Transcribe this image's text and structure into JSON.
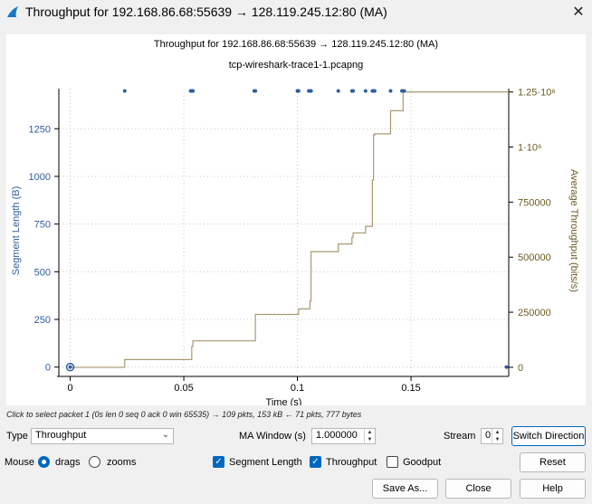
{
  "window": {
    "title": "Throughput for 192.168.86.68:55639 → 128.119.245.12:80 (MA)",
    "close_glyph": "✕"
  },
  "chart_data": {
    "type": "scatter",
    "title": "Throughput for 192.168.86.68:55639 → 128.119.245.12:80 (MA)",
    "subtitle": "tcp-wireshark-trace1-1.pcapng",
    "xlabel": "Time (s)",
    "ylabel_left": "Segment Length (B)",
    "ylabel_right": "Average Throughput (bits/s)",
    "xlim": [
      -0.005,
      0.193
    ],
    "ylim_left": [
      -30,
      1460
    ],
    "ylim_right": [
      -25000,
      1265000
    ],
    "x_ticks": [
      0,
      0.05,
      0.1,
      0.15
    ],
    "x_tick_labels": [
      "0",
      "0.05",
      "0.1",
      "0.15"
    ],
    "y_left_ticks": [
      0,
      250,
      500,
      750,
      1000,
      1250
    ],
    "y_left_tick_labels": [
      "0",
      "250",
      "500",
      "750",
      "1000",
      "1250"
    ],
    "y_right_ticks": [
      0,
      250000,
      500000,
      750000,
      1000000,
      1250000
    ],
    "y_right_tick_labels": [
      "0",
      "250000",
      "500000",
      "750000",
      "1·10⁶",
      "1.25·10⁶"
    ],
    "grid": true,
    "colors": {
      "segment": "#2f5e9c",
      "throughput": "#a89a72",
      "left_axis_text": "#2f5e9c",
      "right_axis_text": "#6b5a1e",
      "gridline": "#c8c8c8"
    },
    "series": [
      {
        "name": "Segment Length",
        "kind": "points",
        "x": [
          0.0,
          0.024,
          0.053,
          0.0535,
          0.054,
          0.081,
          0.0815,
          0.1,
          0.1005,
          0.105,
          0.1055,
          0.106,
          0.118,
          0.124,
          0.1245,
          0.13,
          0.133,
          0.1335,
          0.134,
          0.141,
          0.146,
          0.1465,
          0.147,
          0.192
        ],
        "y": [
          0,
          1448,
          1448,
          1448,
          1448,
          1448,
          1448,
          1448,
          1448,
          1448,
          1448,
          1448,
          1448,
          1448,
          1448,
          1448,
          1448,
          1448,
          1448,
          1448,
          1448,
          1448,
          1448,
          0
        ]
      },
      {
        "name": "Throughput",
        "kind": "step",
        "x": [
          0.0,
          0.023,
          0.024,
          0.053,
          0.0535,
          0.054,
          0.081,
          0.0815,
          0.1,
          0.1005,
          0.105,
          0.1055,
          0.106,
          0.118,
          0.124,
          0.1245,
          0.13,
          0.133,
          0.1335,
          0.134,
          0.141,
          0.146,
          0.1465,
          0.147,
          0.192
        ],
        "y": [
          0,
          0,
          35000,
          35000,
          95000,
          120000,
          120000,
          240000,
          240000,
          265000,
          265000,
          300000,
          525000,
          560000,
          590000,
          610000,
          640000,
          850000,
          1055000,
          1060000,
          1165000,
          1165000,
          1250000,
          1250000,
          1250000
        ]
      }
    ],
    "selected_point": {
      "x": 0.0,
      "y": 0
    }
  },
  "status": {
    "text": "Click to select packet 1 (0s len 0 seq 0 ack 0 win 65535) → 109 pkts, 153 kB ← 71 pkts, 777 bytes"
  },
  "controls": {
    "type_label": "Type",
    "type_value": "Throughput",
    "ma_label": "MA Window (s)",
    "ma_value": "1.000000",
    "stream_label": "Stream",
    "stream_value": "0",
    "switch_label": "Switch Direction",
    "mouse_label": "Mouse",
    "drags_label": "drags",
    "zooms_label": "zooms",
    "seglen_label": "Segment Length",
    "throughput_label": "Throughput",
    "goodput_label": "Goodput",
    "reset_label": "Reset",
    "saveas_label": "Save As...",
    "close_label": "Close",
    "help_label": "Help",
    "check_glyph": "✓",
    "caret_glyph": "⌄"
  }
}
